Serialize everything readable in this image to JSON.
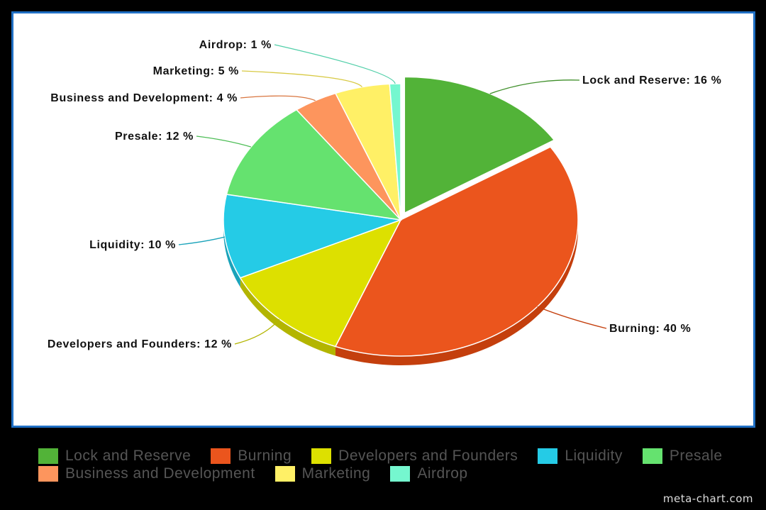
{
  "chart_data": {
    "type": "pie",
    "title": "",
    "legend_placement": "bottom",
    "slices": [
      {
        "name": "Lock and Reserve",
        "value": 16,
        "label": "Lock and Reserve: 16 %",
        "color": "#52b338",
        "side": "#3f8f2a"
      },
      {
        "name": "Burning",
        "value": 40,
        "label": "Burning: 40 %",
        "color": "#eb551d",
        "side": "#c43f0d"
      },
      {
        "name": "Developers and Founders",
        "value": 12,
        "label": "Developers and Founders: 12 %",
        "color": "#dde000",
        "side": "#b3b500"
      },
      {
        "name": "Liquidity",
        "value": 10,
        "label": "Liquidity: 10 %",
        "color": "#25cbe6",
        "side": "#1aa3ba"
      },
      {
        "name": "Presale",
        "value": 12,
        "label": "Presale: 12 %",
        "color": "#65e26f",
        "side": "#4cbd55"
      },
      {
        "name": "Business and Development",
        "value": 4,
        "label": "Business and Development: 4 %",
        "color": "#fd955d",
        "side": "#d97640"
      },
      {
        "name": "Marketing",
        "value": 5,
        "label": "Marketing: 5 %",
        "color": "#fff066",
        "side": "#d8ca45"
      },
      {
        "name": "Airdrop",
        "value": 1,
        "label": "Airdrop: 1 %",
        "color": "#75f7cf",
        "side": "#52cfa9"
      }
    ]
  },
  "watermark": "meta-chart.com"
}
